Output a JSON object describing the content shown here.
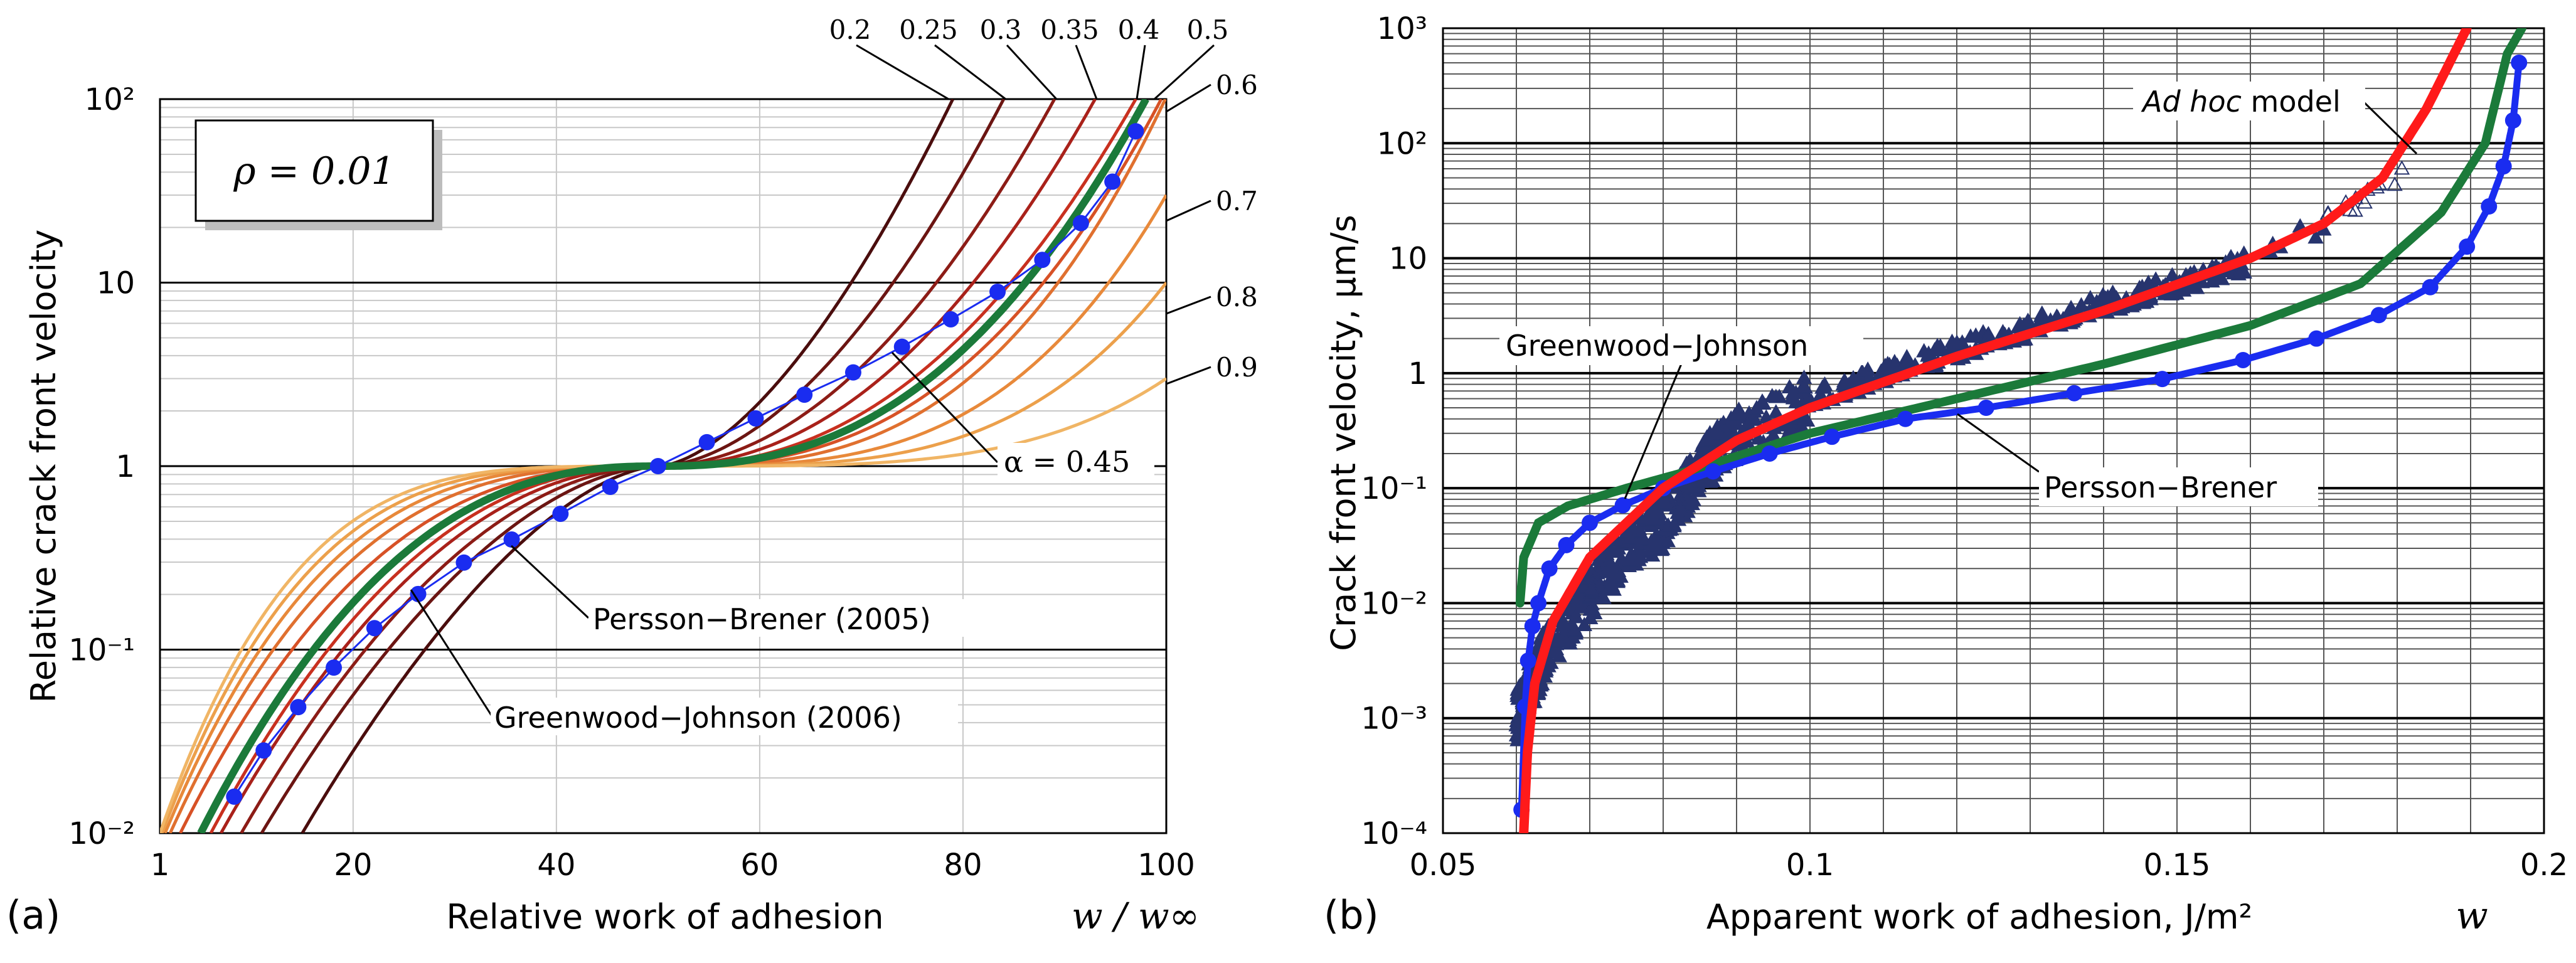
{
  "panels": {
    "a": {
      "label": "(a)",
      "title_box": "ρ = 0.01",
      "xlabel": "Relative work of adhesion",
      "xlabel_math": "w / w∞",
      "ylabel": "Relative crack front velocity",
      "x_ticks": [
        "1",
        "20",
        "40",
        "60",
        "80",
        "100"
      ],
      "y_ticks": [
        "10⁻²",
        "10⁻¹",
        "1",
        "10",
        "10²"
      ],
      "alpha_labels": [
        "0.2",
        "0.25",
        "0.3",
        "0.35",
        "0.4",
        "0.5",
        "0.6",
        "0.7",
        "0.8",
        "0.9"
      ],
      "annotations": {
        "alpha": "α = 0.45",
        "persson": "Persson−Brener (2005)",
        "greenwood": "Greenwood−Johnson (2006)"
      }
    },
    "b": {
      "label": "(b)",
      "xlabel": "Apparent work of adhesion, J/m²",
      "xlabel_math": "w",
      "ylabel": "Crack front velocity, μm/s",
      "x_ticks": [
        "0.05",
        "0.1",
        "0.15",
        "0.2"
      ],
      "y_ticks": [
        "10⁻⁴",
        "10⁻³",
        "10⁻²",
        "10⁻¹",
        "1",
        "10",
        "10²",
        "10³"
      ],
      "annotations": {
        "adhoc_italic": "Ad hoc",
        "adhoc_rest": " model",
        "greenwood": "Greenwood−Johnson",
        "persson": "Persson−Brener"
      }
    }
  },
  "colors": {
    "alpha_curves": [
      "#4a0d0d",
      "#6b1512",
      "#8c1c16",
      "#b0261a",
      "#cc3a22",
      "#dc6a2e",
      "#e8893a",
      "#eda24e",
      "#f0b565"
    ],
    "greenwood": "#1b7a3a",
    "persson": "#1a2cf0",
    "adhoc": "#ff1a1a",
    "experiment": "#27346e"
  },
  "chart_data": [
    {
      "type": "line",
      "panel": "a",
      "title": "ρ = 0.01",
      "xlabel": "Relative work of adhesion",
      "ylabel": "Relative crack front velocity",
      "xlim": [
        1,
        100
      ],
      "ylim": [
        0.01,
        100
      ],
      "yscale": "log",
      "pivot": [
        50,
        1
      ],
      "series": [
        {
          "name": "0.2",
          "alpha": 0.2,
          "x": [
            15,
            50,
            79
          ],
          "y": [
            0.01,
            1,
            100
          ]
        },
        {
          "name": "0.25",
          "alpha": 0.25,
          "x": [
            11,
            50,
            84
          ],
          "y": [
            0.01,
            1,
            100
          ]
        },
        {
          "name": "0.3",
          "alpha": 0.3,
          "x": [
            9,
            50,
            89
          ],
          "y": [
            0.01,
            1,
            100
          ]
        },
        {
          "name": "0.35",
          "alpha": 0.35,
          "x": [
            7,
            50,
            93
          ],
          "y": [
            0.01,
            1,
            100
          ]
        },
        {
          "name": "0.4",
          "alpha": 0.4,
          "x": [
            6,
            50,
            97
          ],
          "y": [
            0.01,
            1,
            100
          ]
        },
        {
          "name": "0.5",
          "alpha": 0.5,
          "x": [
            3,
            50,
            99.5
          ],
          "y": [
            0.01,
            1,
            100
          ]
        },
        {
          "name": "0.6",
          "alpha": 0.6,
          "x": [
            2,
            50,
            99.9
          ],
          "y": [
            0.01,
            1,
            100
          ]
        },
        {
          "name": "0.7",
          "alpha": 0.7,
          "x": [
            1.5,
            50,
            100
          ],
          "y": [
            0.01,
            1,
            30
          ]
        },
        {
          "name": "0.8",
          "alpha": 0.8,
          "x": [
            1.2,
            50,
            100
          ],
          "y": [
            0.01,
            1,
            10
          ]
        },
        {
          "name": "0.9",
          "alpha": 0.9,
          "x": [
            1,
            50,
            100
          ],
          "y": [
            0.01,
            1,
            3
          ]
        },
        {
          "name": "Greenwood−Johnson (2006)",
          "alpha": 0.45,
          "x": [
            5,
            50,
            98
          ],
          "y": [
            0.01,
            1,
            100
          ]
        },
        {
          "name": "Persson−Brener (2005)",
          "x": [
            8.3,
            11.2,
            14.6,
            18.1,
            22.1,
            26.4,
            30.9,
            35.6,
            40.4,
            45.3,
            50.0,
            54.8,
            59.6,
            64.4,
            69.2,
            74.0,
            78.8,
            83.4,
            87.8,
            91.6,
            94.7,
            97.0
          ],
          "y": [
            0.0158,
            0.0282,
            0.0486,
            0.0798,
            0.131,
            0.201,
            0.298,
            0.398,
            0.55,
            0.771,
            1.0,
            1.35,
            1.82,
            2.45,
            3.24,
            4.47,
            6.31,
            8.91,
            13.3,
            21.1,
            35.5,
            66.8
          ]
        }
      ]
    },
    {
      "type": "line",
      "panel": "b",
      "xlabel": "Apparent work of adhesion, J/m²",
      "ylabel": "Crack front velocity, μm/s",
      "xlim": [
        0.05,
        0.2
      ],
      "ylim": [
        0.0001,
        1000
      ],
      "yscale": "log",
      "series": [
        {
          "name": "Ad hoc model",
          "x": [
            0.061,
            0.0615,
            0.0625,
            0.065,
            0.07,
            0.08,
            0.09,
            0.1,
            0.12,
            0.14,
            0.16,
            0.17,
            0.178,
            0.184,
            0.1895
          ],
          "y": [
            0.0001,
            0.0005,
            0.002,
            0.007,
            0.025,
            0.1,
            0.26,
            0.5,
            1.4,
            3.5,
            10,
            20,
            50,
            200,
            1000
          ]
        },
        {
          "name": "Greenwood−Johnson",
          "x": [
            0.0605,
            0.061,
            0.063,
            0.067,
            0.075,
            0.085,
            0.1,
            0.12,
            0.14,
            0.16,
            0.175,
            0.186,
            0.192,
            0.195,
            0.197
          ],
          "y": [
            0.01,
            0.025,
            0.05,
            0.07,
            0.1,
            0.15,
            0.3,
            0.6,
            1.2,
            2.6,
            6,
            25,
            100,
            600,
            1000
          ]
        },
        {
          "name": "Persson−Brener",
          "x": [
            0.0607,
            0.0612,
            0.0616,
            0.0622,
            0.063,
            0.0645,
            0.0668,
            0.07,
            0.0745,
            0.08,
            0.0868,
            0.0945,
            0.103,
            0.113,
            0.124,
            0.136,
            0.148,
            0.159,
            0.169,
            0.1775,
            0.1845,
            0.1895,
            0.1925,
            0.1945,
            0.1958,
            0.1966
          ],
          "y": [
            0.00016,
            0.00126,
            0.00316,
            0.00631,
            0.01,
            0.02,
            0.032,
            0.05,
            0.071,
            0.1,
            0.14,
            0.2,
            0.28,
            0.4,
            0.5,
            0.67,
            0.89,
            1.3,
            2.0,
            3.2,
            5.6,
            12.6,
            28.2,
            63,
            158,
            501
          ]
        },
        {
          "name": "experiment",
          "x": [
            0.06,
            0.062,
            0.065,
            0.07,
            0.075,
            0.08,
            0.085,
            0.09,
            0.1,
            0.11,
            0.12,
            0.13,
            0.14,
            0.15,
            0.16,
            0.17,
            0.175,
            0.181
          ],
          "y": [
            0.001,
            0.002,
            0.005,
            0.012,
            0.03,
            0.05,
            0.15,
            0.3,
            0.6,
            1.0,
            1.6,
            2.5,
            4.0,
            6.0,
            9.5,
            20,
            30,
            55
          ]
        }
      ]
    }
  ]
}
